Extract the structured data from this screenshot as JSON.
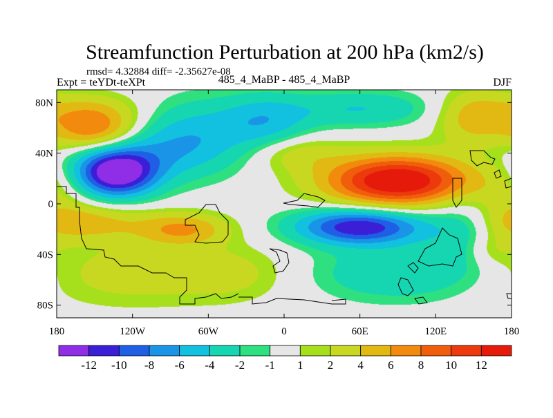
{
  "chart_data": {
    "type": "heatmap",
    "title": "Streamfunction Perturbation at 200 hPa (km2/s)",
    "stats": "rmsd= 4.32884  diff= -2.35627e-08",
    "left_label": "Expt = teYDt-teXPt",
    "center_label": "485_4_MaBP - 485_4_MaBP",
    "right_label": "DJF",
    "xlim": [
      -180,
      180
    ],
    "ylim": [
      -90,
      90
    ],
    "x_ticks": [
      {
        "value": -180,
        "label": "180"
      },
      {
        "value": -120,
        "label": "120W"
      },
      {
        "value": -60,
        "label": "60W"
      },
      {
        "value": 0,
        "label": "0"
      },
      {
        "value": 60,
        "label": "60E"
      },
      {
        "value": 120,
        "label": "120E"
      },
      {
        "value": 180,
        "label": "180"
      }
    ],
    "y_ticks": [
      {
        "value": 80,
        "label": "80N"
      },
      {
        "value": 40,
        "label": "40N"
      },
      {
        "value": 0,
        "label": "0"
      },
      {
        "value": -40,
        "label": "40S"
      },
      {
        "value": -80,
        "label": "80S"
      }
    ],
    "colorbar": {
      "levels": [
        -12,
        -10,
        -8,
        -6,
        -4,
        -2,
        -1,
        1,
        2,
        4,
        6,
        8,
        10,
        12
      ],
      "level_labels": [
        "-12",
        "-10",
        "-8",
        "-6",
        "-4",
        "-2",
        "-1",
        "1",
        "2",
        "4",
        "6",
        "8",
        "10",
        "12"
      ],
      "colors": [
        "#8f2ee6",
        "#3a1fd6",
        "#1f5fe6",
        "#1a94e6",
        "#12c0e0",
        "#16d6b2",
        "#2fe080",
        "#e6e6e6",
        "#a6e01c",
        "#c8d820",
        "#e2b812",
        "#f28a0e",
        "#f05e0c",
        "#ec3a0c",
        "#e61a0a"
      ]
    },
    "anomalies": [
      {
        "lon": -150,
        "lat": 58,
        "amp": 8,
        "slon": 24,
        "slat": 12
      },
      {
        "lon": -160,
        "lat": 75,
        "amp": 3,
        "slon": 30,
        "slat": 10
      },
      {
        "lon": -133,
        "lat": 24,
        "amp": -14,
        "slon": 22,
        "slat": 13
      },
      {
        "lon": -110,
        "lat": 40,
        "amp": -4,
        "slon": 40,
        "slat": 16
      },
      {
        "lon": -70,
        "lat": 55,
        "amp": -4,
        "slon": 30,
        "slat": 20
      },
      {
        "lon": -15,
        "lat": 65,
        "amp": -5,
        "slon": 25,
        "slat": 15
      },
      {
        "lon": 60,
        "lat": 75,
        "amp": -4,
        "slon": 40,
        "slat": 10
      },
      {
        "lon": 10,
        "lat": 40,
        "amp": 3,
        "slon": 25,
        "slat": 10
      },
      {
        "lon": 90,
        "lat": 18,
        "amp": 15,
        "slon": 40,
        "slat": 14
      },
      {
        "lon": 150,
        "lat": 68,
        "amp": 5,
        "slon": 20,
        "slat": 15
      },
      {
        "lon": 175,
        "lat": 0,
        "amp": 3,
        "slon": 20,
        "slat": 20
      },
      {
        "lon": -160,
        "lat": -15,
        "amp": 5,
        "slon": 35,
        "slat": 10
      },
      {
        "lon": -80,
        "lat": -20,
        "amp": 6,
        "slon": 25,
        "slat": 9
      },
      {
        "lon": -120,
        "lat": -55,
        "amp": 3,
        "slon": 55,
        "slat": 18
      },
      {
        "lon": -40,
        "lat": -55,
        "amp": 2,
        "slon": 30,
        "slat": 15
      },
      {
        "lon": 60,
        "lat": -18,
        "amp": -12,
        "slon": 35,
        "slat": 10
      },
      {
        "lon": 150,
        "lat": -20,
        "amp": -4,
        "slon": 25,
        "slat": 20
      },
      {
        "lon": 90,
        "lat": -55,
        "amp": -4,
        "slon": 45,
        "slat": 15
      },
      {
        "lon": 165,
        "lat": -35,
        "amp": 3,
        "slon": 15,
        "slat": 10
      }
    ]
  }
}
